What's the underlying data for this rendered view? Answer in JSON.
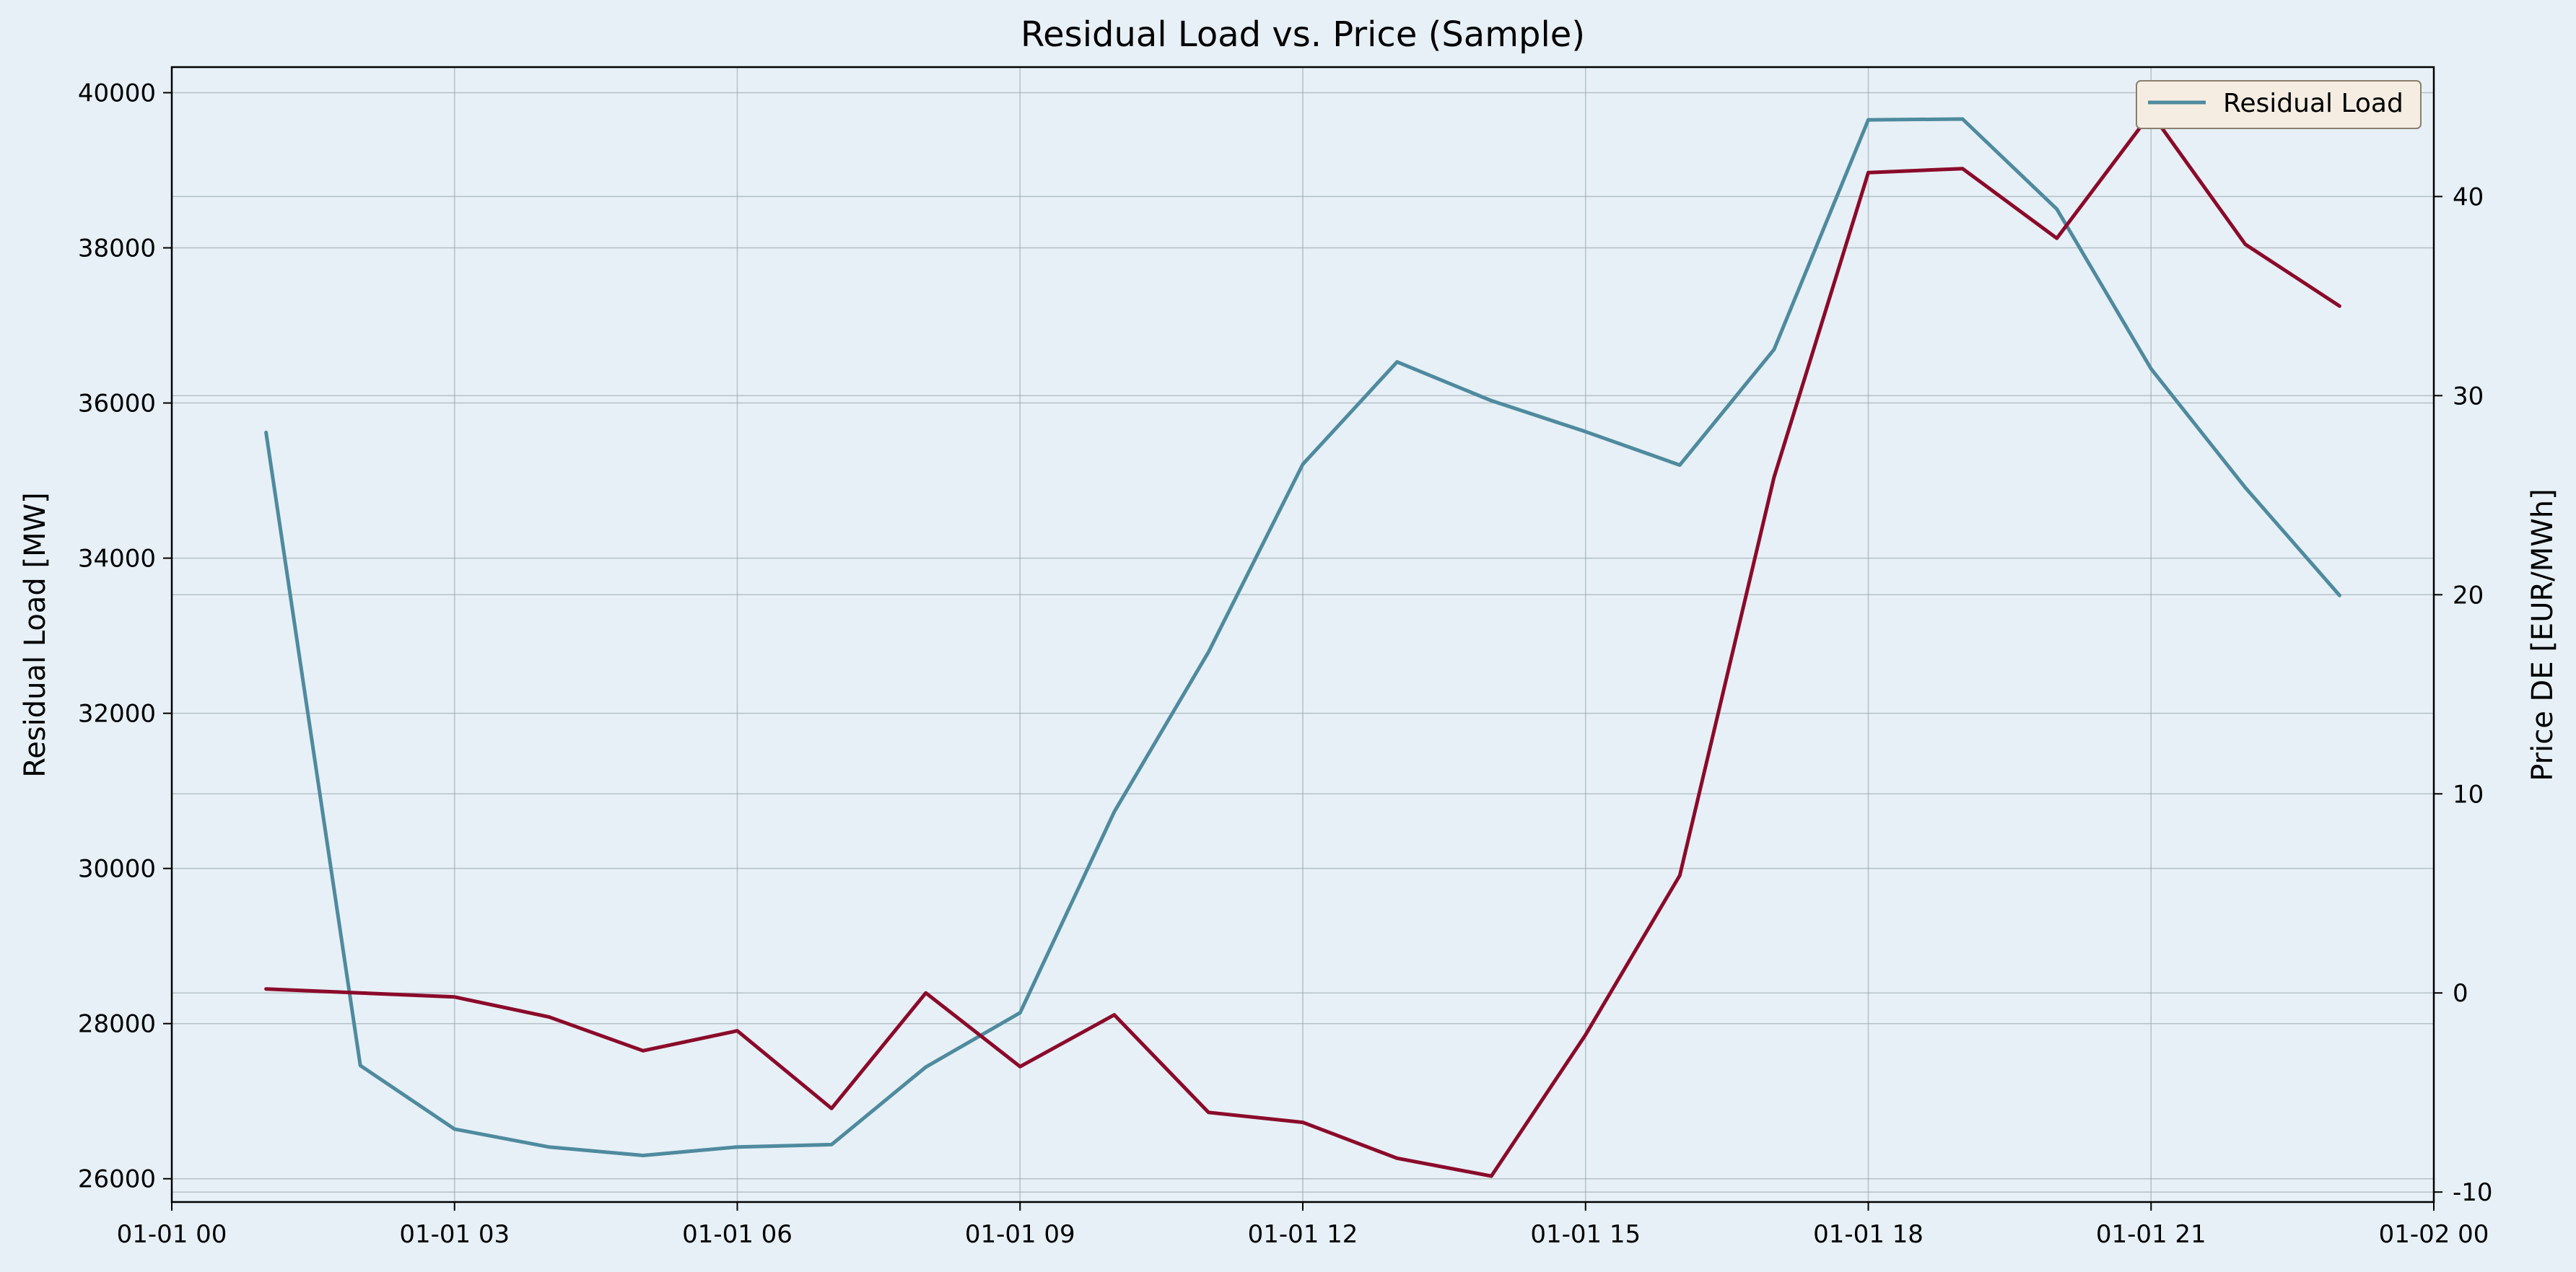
{
  "chart_data": {
    "type": "line",
    "title": "Residual Load vs. Price (Sample)",
    "x": [
      "01-01 01",
      "01-01 02",
      "01-01 03",
      "01-01 04",
      "01-01 05",
      "01-01 06",
      "01-01 07",
      "01-01 08",
      "01-01 09",
      "01-01 10",
      "01-01 11",
      "01-01 12",
      "01-01 13",
      "01-01 14",
      "01-01 15",
      "01-01 16",
      "01-01 17",
      "01-01 18",
      "01-01 19",
      "01-01 20",
      "01-01 21",
      "01-01 22",
      "01-01 23"
    ],
    "x_tick_labels": [
      "01-01 00",
      "01-01 03",
      "01-01 06",
      "01-01 09",
      "01-01 12",
      "01-01 15",
      "01-01 18",
      "01-01 21",
      "01-02 00"
    ],
    "x_range_hours": [
      0,
      24
    ],
    "y_left": {
      "label": "Residual Load [MW]",
      "ylim": [
        25700,
        40330
      ],
      "ticks": [
        26000,
        28000,
        30000,
        32000,
        34000,
        36000,
        38000,
        40000
      ]
    },
    "y_right": {
      "label": "Price DE [EUR/MWh]",
      "ylim": [
        -10.5,
        46.5
      ],
      "ticks": [
        -10,
        0,
        10,
        20,
        30,
        40
      ]
    },
    "series": [
      {
        "name": "Residual Load",
        "axis": "left",
        "color": "#4f8a9e",
        "values": [
          35620,
          27460,
          26640,
          26410,
          26300,
          26410,
          26440,
          27440,
          28140,
          30730,
          32790,
          35210,
          36530,
          36030,
          35630,
          35200,
          36690,
          39650,
          39660,
          38500,
          36440,
          34910,
          33520
        ]
      },
      {
        "axis": "right",
        "color": "#8b0a2a",
        "values": [
          0.2,
          0.0,
          -0.2,
          -1.2,
          -2.9,
          -1.9,
          -5.8,
          0.0,
          -3.7,
          -1.1,
          -6.0,
          -6.5,
          -8.3,
          -9.2,
          -2.1,
          5.9,
          25.9,
          41.2,
          41.4,
          37.9,
          44.2,
          37.6,
          34.5
        ]
      }
    ],
    "grid": true,
    "legend": "top-right"
  },
  "colors": {
    "background": "#e6f0f6",
    "legend_background": "#f5ede2",
    "legend_border": "#8a7f6d",
    "grid": "#8c9aa3"
  }
}
